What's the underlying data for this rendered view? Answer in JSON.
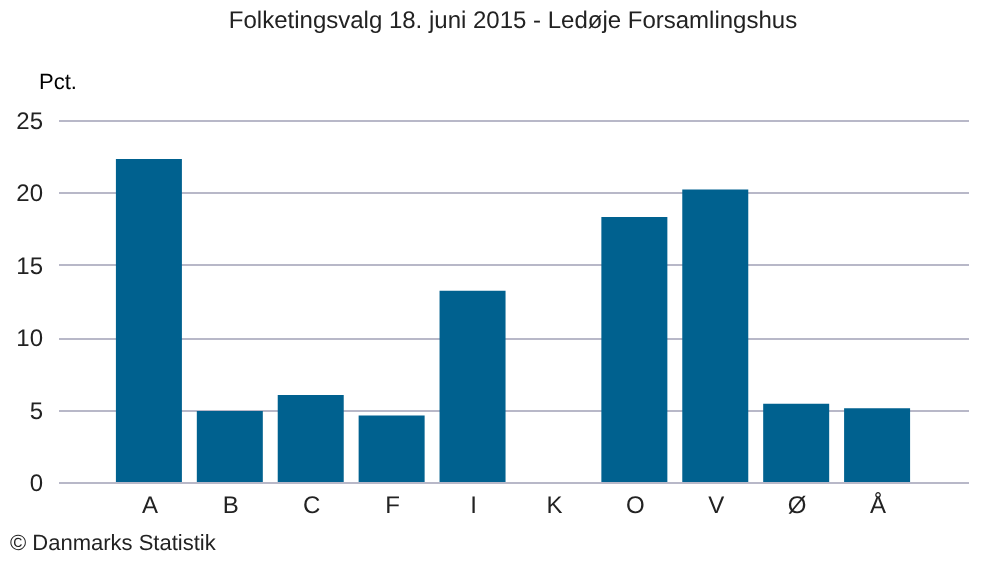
{
  "chart_data": {
    "type": "bar",
    "title": "Folketingsvalg 18. juni 2015 - Ledøje Forsamlingshus",
    "ylabel": "Pct.",
    "categories": [
      "A",
      "B",
      "C",
      "F",
      "I",
      "K",
      "O",
      "V",
      "Ø",
      "Å"
    ],
    "values": [
      22.3,
      4.9,
      6.0,
      4.6,
      13.2,
      0,
      18.3,
      20.2,
      5.4,
      5.1
    ],
    "color": "#00618f",
    "ylim": [
      0,
      25
    ],
    "yticks": [
      0,
      5,
      10,
      15,
      20,
      25
    ],
    "grid": "y",
    "annotations": [
      "© Danmarks Statistik"
    ]
  }
}
